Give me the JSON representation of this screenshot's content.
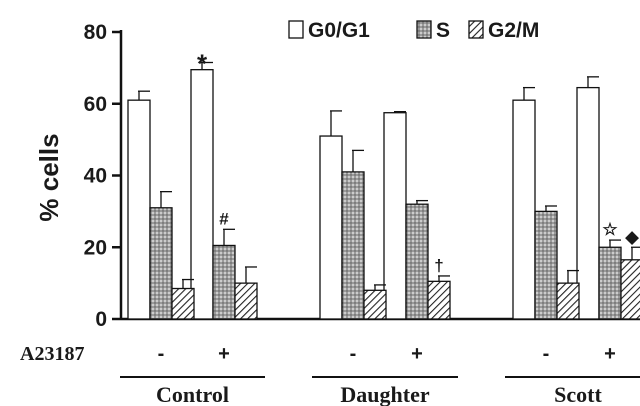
{
  "chart_data": {
    "type": "bar",
    "title": "",
    "ylabel": "% cells",
    "xlabel": "",
    "ylim": [
      0,
      80
    ],
    "yticks": [
      0,
      20,
      40,
      60,
      80
    ],
    "grid": false,
    "legend_position": "top",
    "treatment_label": "A23187",
    "groups": [
      {
        "name": "Control",
        "conditions": [
          "-",
          "+"
        ]
      },
      {
        "name": "Daughter",
        "conditions": [
          "-",
          "+"
        ]
      },
      {
        "name": "Scott",
        "conditions": [
          "-",
          "+"
        ]
      }
    ],
    "categories": [
      "Control -",
      "Control +",
      "Daughter -",
      "Daughter +",
      "Scott -",
      "Scott +"
    ],
    "series": [
      {
        "name": "G0/G1",
        "pattern": "white",
        "values": [
          61,
          69.5,
          51,
          57.5,
          61,
          64.5
        ],
        "errors": [
          2.5,
          2,
          7,
          0.3,
          3.5,
          3
        ]
      },
      {
        "name": "S",
        "pattern": "dotted",
        "values": [
          31,
          20.5,
          41,
          32,
          30,
          20
        ],
        "errors": [
          4.5,
          4.5,
          6,
          1,
          1.5,
          2
        ]
      },
      {
        "name": "G2/M",
        "pattern": "hatched",
        "values": [
          8.5,
          10,
          8,
          10.5,
          10,
          16.5
        ],
        "errors": [
          2.5,
          4.5,
          1.5,
          1.5,
          3.5,
          3.5
        ]
      }
    ],
    "annotations": [
      {
        "text": "*",
        "category": "Control +",
        "series": "G0/G1"
      },
      {
        "text": "#",
        "category": "Control +",
        "series": "S"
      },
      {
        "text": "†",
        "category": "Daughter +",
        "series": "G2/M"
      },
      {
        "text": "☆",
        "category": "Scott +",
        "series": "S"
      },
      {
        "text": "◆",
        "category": "Scott +",
        "series": "G2/M"
      }
    ]
  }
}
